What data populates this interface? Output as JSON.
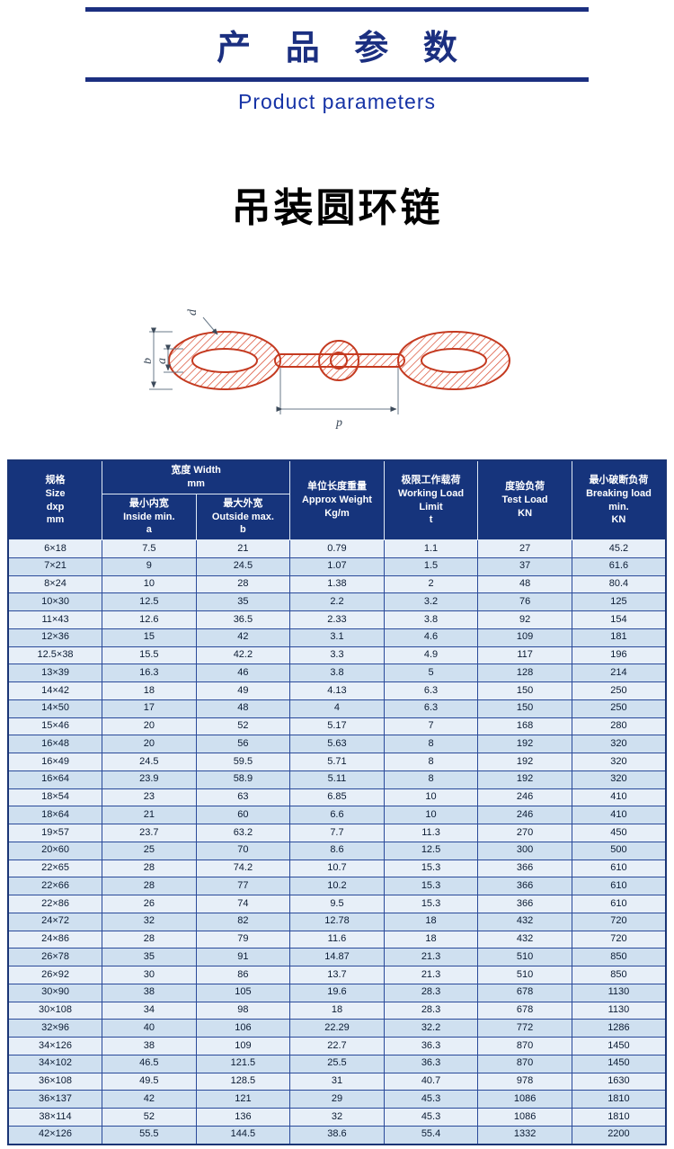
{
  "colors": {
    "brand_navy": "#1b2f80",
    "banner_en_blue": "#1633a6",
    "table_header_bg": "#16347c",
    "row_light": "#e7eff8",
    "row_dark": "#cfe0f0",
    "grid_line": "#2a4a9a",
    "chain_red": "#c43a20"
  },
  "banner": {
    "title_cn": "产 品 参 数",
    "title_en": "Product parameters"
  },
  "product_title": "吊装圆环链",
  "diagram": {
    "labels": {
      "d": "d",
      "a": "a",
      "b": "b",
      "p": "p"
    }
  },
  "table": {
    "header": {
      "size": "规格\nSize\ndxp\nmm",
      "width_group": "宽度 Width\nmm",
      "inside_width": "最小内宽\nInside min.\na",
      "outside_width": "最大外宽\nOutside max.\nb",
      "weight": "单位长度重量\nApprox Weight\nKg/m",
      "wll": "极限工作载荷\nWorking Load Limit\nt",
      "test_load": "度验负荷\nTest Load\nKN",
      "breaking_load": "最小破断负荷\nBreaking load\nmin.\nKN"
    },
    "rows": [
      [
        "6×18",
        "7.5",
        "21",
        "0.79",
        "1.1",
        "27",
        "45.2"
      ],
      [
        "7×21",
        "9",
        "24.5",
        "1.07",
        "1.5",
        "37",
        "61.6"
      ],
      [
        "8×24",
        "10",
        "28",
        "1.38",
        "2",
        "48",
        "80.4"
      ],
      [
        "10×30",
        "12.5",
        "35",
        "2.2",
        "3.2",
        "76",
        "125"
      ],
      [
        "11×43",
        "12.6",
        "36.5",
        "2.33",
        "3.8",
        "92",
        "154"
      ],
      [
        "12×36",
        "15",
        "42",
        "3.1",
        "4.6",
        "109",
        "181"
      ],
      [
        "12.5×38",
        "15.5",
        "42.2",
        "3.3",
        "4.9",
        "117",
        "196"
      ],
      [
        "13×39",
        "16.3",
        "46",
        "3.8",
        "5",
        "128",
        "214"
      ],
      [
        "14×42",
        "18",
        "49",
        "4.13",
        "6.3",
        "150",
        "250"
      ],
      [
        "14×50",
        "17",
        "48",
        "4",
        "6.3",
        "150",
        "250"
      ],
      [
        "15×46",
        "20",
        "52",
        "5.17",
        "7",
        "168",
        "280"
      ],
      [
        "16×48",
        "20",
        "56",
        "5.63",
        "8",
        "192",
        "320"
      ],
      [
        "16×49",
        "24.5",
        "59.5",
        "5.71",
        "8",
        "192",
        "320"
      ],
      [
        "16×64",
        "23.9",
        "58.9",
        "5.11",
        "8",
        "192",
        "320"
      ],
      [
        "18×54",
        "23",
        "63",
        "6.85",
        "10",
        "246",
        "410"
      ],
      [
        "18×64",
        "21",
        "60",
        "6.6",
        "10",
        "246",
        "410"
      ],
      [
        "19×57",
        "23.7",
        "63.2",
        "7.7",
        "11.3",
        "270",
        "450"
      ],
      [
        "20×60",
        "25",
        "70",
        "8.6",
        "12.5",
        "300",
        "500"
      ],
      [
        "22×65",
        "28",
        "74.2",
        "10.7",
        "15.3",
        "366",
        "610"
      ],
      [
        "22×66",
        "28",
        "77",
        "10.2",
        "15.3",
        "366",
        "610"
      ],
      [
        "22×86",
        "26",
        "74",
        "9.5",
        "15.3",
        "366",
        "610"
      ],
      [
        "24×72",
        "32",
        "82",
        "12.78",
        "18",
        "432",
        "720"
      ],
      [
        "24×86",
        "28",
        "79",
        "11.6",
        "18",
        "432",
        "720"
      ],
      [
        "26×78",
        "35",
        "91",
        "14.87",
        "21.3",
        "510",
        "850"
      ],
      [
        "26×92",
        "30",
        "86",
        "13.7",
        "21.3",
        "510",
        "850"
      ],
      [
        "30×90",
        "38",
        "105",
        "19.6",
        "28.3",
        "678",
        "1130"
      ],
      [
        "30×108",
        "34",
        "98",
        "18",
        "28.3",
        "678",
        "1130"
      ],
      [
        "32×96",
        "40",
        "106",
        "22.29",
        "32.2",
        "772",
        "1286"
      ],
      [
        "34×126",
        "38",
        "109",
        "22.7",
        "36.3",
        "870",
        "1450"
      ],
      [
        "34×102",
        "46.5",
        "121.5",
        "25.5",
        "36.3",
        "870",
        "1450"
      ],
      [
        "36×108",
        "49.5",
        "128.5",
        "31",
        "40.7",
        "978",
        "1630"
      ],
      [
        "36×137",
        "42",
        "121",
        "29",
        "45.3",
        "1086",
        "1810"
      ],
      [
        "38×114",
        "52",
        "136",
        "32",
        "45.3",
        "1086",
        "1810"
      ],
      [
        "42×126",
        "55.5",
        "144.5",
        "38.6",
        "55.4",
        "1332",
        "2200"
      ]
    ]
  }
}
